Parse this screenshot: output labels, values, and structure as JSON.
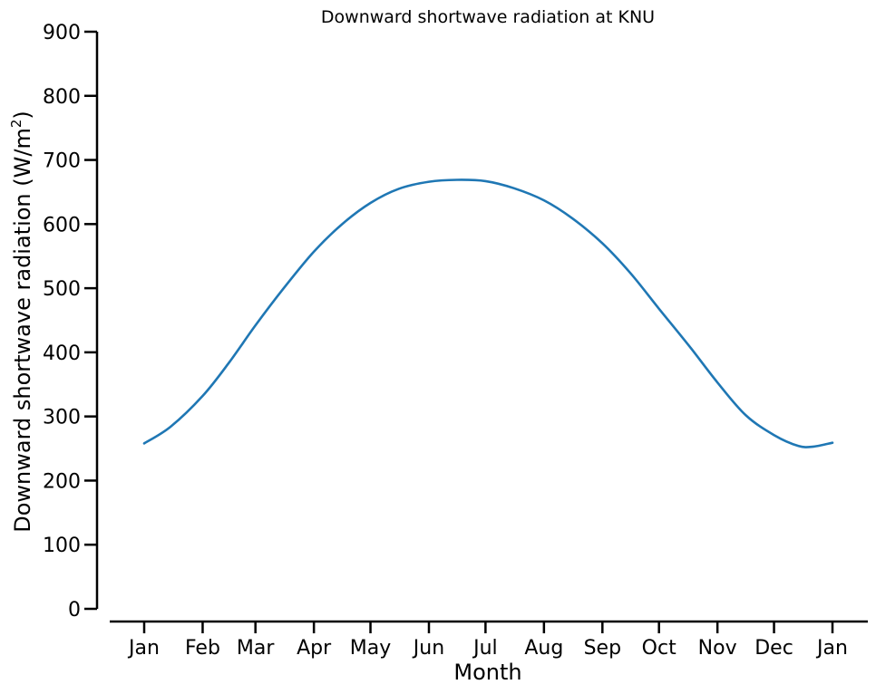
{
  "chart_data": {
    "type": "line",
    "title": "Downward shortwave radiation at KNU",
    "xlabel": "Month",
    "ylabel": "Downward shortwave radiation (W/m",
    "ylabel_superscript": "2",
    "ylabel_suffix": ")",
    "xlim": [
      "Jan",
      "Jan"
    ],
    "ylim": [
      0,
      900
    ],
    "grid": false,
    "x_ticks": [
      {
        "label": "Jan",
        "doy": 1
      },
      {
        "label": "Feb",
        "doy": 32
      },
      {
        "label": "Mar",
        "doy": 60
      },
      {
        "label": "Apr",
        "doy": 91
      },
      {
        "label": "May",
        "doy": 121
      },
      {
        "label": "Jun",
        "doy": 152
      },
      {
        "label": "Jul",
        "doy": 182
      },
      {
        "label": "Aug",
        "doy": 213
      },
      {
        "label": "Sep",
        "doy": 244
      },
      {
        "label": "Oct",
        "doy": 274
      },
      {
        "label": "Nov",
        "doy": 305
      },
      {
        "label": "Dec",
        "doy": 335
      },
      {
        "label": "Jan",
        "doy": 366
      }
    ],
    "y_ticks": [
      0,
      100,
      200,
      300,
      400,
      500,
      600,
      700,
      800,
      900
    ],
    "series": [
      {
        "color": "#1f77b4",
        "points": [
          {
            "doy": 1,
            "y": 258
          },
          {
            "doy": 15,
            "y": 284
          },
          {
            "doy": 32,
            "y": 332
          },
          {
            "doy": 46,
            "y": 384
          },
          {
            "doy": 60,
            "y": 442
          },
          {
            "doy": 75,
            "y": 500
          },
          {
            "doy": 91,
            "y": 557
          },
          {
            "doy": 106,
            "y": 600
          },
          {
            "doy": 121,
            "y": 633
          },
          {
            "doy": 136,
            "y": 655
          },
          {
            "doy": 152,
            "y": 666
          },
          {
            "doy": 167,
            "y": 669
          },
          {
            "doy": 182,
            "y": 667
          },
          {
            "doy": 197,
            "y": 656
          },
          {
            "doy": 213,
            "y": 637
          },
          {
            "doy": 228,
            "y": 609
          },
          {
            "doy": 244,
            "y": 570
          },
          {
            "doy": 259,
            "y": 523
          },
          {
            "doy": 274,
            "y": 468
          },
          {
            "doy": 290,
            "y": 410
          },
          {
            "doy": 305,
            "y": 353
          },
          {
            "doy": 320,
            "y": 302
          },
          {
            "doy": 335,
            "y": 271
          },
          {
            "doy": 348,
            "y": 254
          },
          {
            "doy": 356,
            "y": 253
          },
          {
            "doy": 366,
            "y": 259
          }
        ]
      }
    ]
  }
}
